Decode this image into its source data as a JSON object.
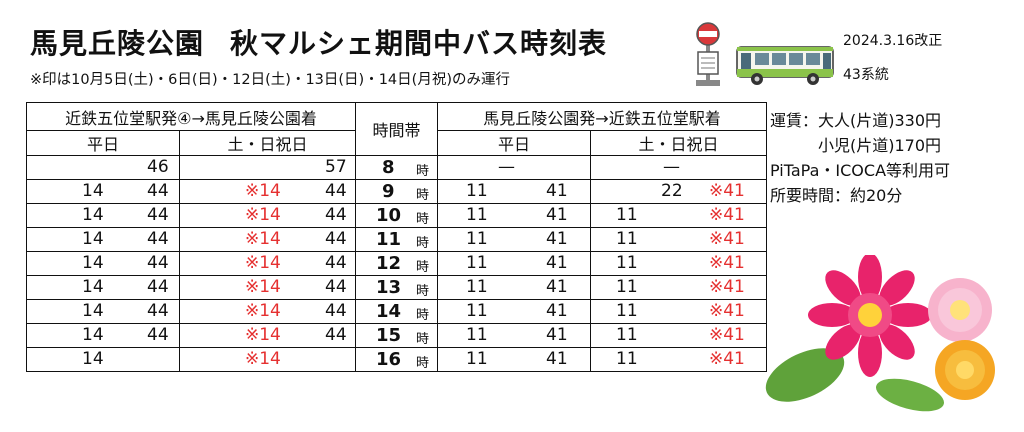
{
  "header": {
    "title_main": "馬見丘陵公園",
    "title_sub": "秋マルシェ期間中バス時刻表",
    "note": "※印は10月5日(土)・6日(日)・12日(土)・13日(日)・14日(月祝)のみ運行",
    "revision_date": "2024.3.16改正",
    "route_number": "43系統"
  },
  "table": {
    "dir1_title": "近鉄五位堂駅発④→馬見丘陵公園着",
    "dir2_title": "馬見丘陵公園発→近鉄五位堂駅着",
    "time_band_label": "時間帯",
    "weekday_label": "平日",
    "holiday_label": "土・日祝日",
    "hour_suffix": "時",
    "dash": "—",
    "rows": [
      {
        "hour": "8",
        "d1_wk_a": "",
        "d1_wk_b": "46",
        "d1_ho_a": "",
        "d1_ho_b": "57",
        "d2_wk_a": "—",
        "d2_wk_b": "",
        "d2_ho_a": "—",
        "d2_ho_b": ""
      },
      {
        "hour": "9",
        "d1_wk_a": "14",
        "d1_wk_b": "44",
        "d1_ho_a": "※14",
        "d1_ho_b": "44",
        "d2_wk_a": "11",
        "d2_wk_b": "41",
        "d2_ho_a": "22",
        "d2_ho_b": "※41"
      },
      {
        "hour": "10",
        "d1_wk_a": "14",
        "d1_wk_b": "44",
        "d1_ho_a": "※14",
        "d1_ho_b": "44",
        "d2_wk_a": "11",
        "d2_wk_b": "41",
        "d2_ho_a": "11",
        "d2_ho_b": "※41"
      },
      {
        "hour": "11",
        "d1_wk_a": "14",
        "d1_wk_b": "44",
        "d1_ho_a": "※14",
        "d1_ho_b": "44",
        "d2_wk_a": "11",
        "d2_wk_b": "41",
        "d2_ho_a": "11",
        "d2_ho_b": "※41"
      },
      {
        "hour": "12",
        "d1_wk_a": "14",
        "d1_wk_b": "44",
        "d1_ho_a": "※14",
        "d1_ho_b": "44",
        "d2_wk_a": "11",
        "d2_wk_b": "41",
        "d2_ho_a": "11",
        "d2_ho_b": "※41"
      },
      {
        "hour": "13",
        "d1_wk_a": "14",
        "d1_wk_b": "44",
        "d1_ho_a": "※14",
        "d1_ho_b": "44",
        "d2_wk_a": "11",
        "d2_wk_b": "41",
        "d2_ho_a": "11",
        "d2_ho_b": "※41"
      },
      {
        "hour": "14",
        "d1_wk_a": "14",
        "d1_wk_b": "44",
        "d1_ho_a": "※14",
        "d1_ho_b": "44",
        "d2_wk_a": "11",
        "d2_wk_b": "41",
        "d2_ho_a": "11",
        "d2_ho_b": "※41"
      },
      {
        "hour": "15",
        "d1_wk_a": "14",
        "d1_wk_b": "44",
        "d1_ho_a": "※14",
        "d1_ho_b": "44",
        "d2_wk_a": "11",
        "d2_wk_b": "41",
        "d2_ho_a": "11",
        "d2_ho_b": "※41"
      },
      {
        "hour": "16",
        "d1_wk_a": "14",
        "d1_wk_b": "",
        "d1_ho_a": "※14",
        "d1_ho_b": "",
        "d2_wk_a": "11",
        "d2_wk_b": "41",
        "d2_ho_a": "11",
        "d2_ho_b": "※41"
      }
    ]
  },
  "info": {
    "fare_adult": "運賃：大人(片道)330円",
    "fare_child": "小児(片道)170円",
    "ic_cards": "PiTaPa・ICOCA等利用可",
    "duration": "所要時間：約20分"
  },
  "colors": {
    "special_red": "#e53030",
    "bus_green": "#8bc34a",
    "flower_pink": "#e8236b",
    "flower_orange": "#f5a623"
  },
  "icons": [
    "bus-stop-icon",
    "bus-icon",
    "flower-illustration"
  ]
}
